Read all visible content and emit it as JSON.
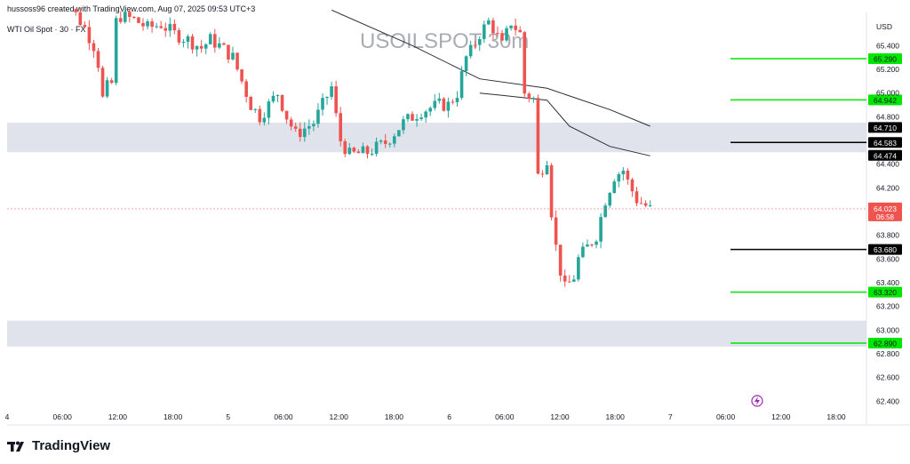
{
  "header": {
    "credit": "hussoss96 created with TradingView.com, Aug 07, 2025 09:53 UTC+3"
  },
  "symbol": "WTI Oil Spot · 30 · FX",
  "watermark": "USOILSPOT 30m",
  "footer": {
    "brand": "TradingView",
    "logo_icon": "tradingview-logo-icon"
  },
  "colors": {
    "up": "#26a69a",
    "down": "#ef5350",
    "green_level": "#00e600",
    "black_level": "#000000",
    "zone": "#e0e3eb"
  },
  "chart_data": {
    "type": "candlestick",
    "currency": "USD",
    "ylim": [
      62.35,
      65.65
    ],
    "y_ticks": [
      65.4,
      65.2,
      65.0,
      64.8,
      64.4,
      64.2,
      63.8,
      63.6,
      63.4,
      63.2,
      63.0,
      62.8,
      62.6,
      62.4
    ],
    "x_ticks": [
      "4",
      "06:00",
      "12:00",
      "18:00",
      "5",
      "06:00",
      "12:00",
      "18:00",
      "6",
      "06:00",
      "12:00",
      "18:00",
      "7",
      "06:00",
      "12:00",
      "18:00"
    ],
    "last_price": {
      "value": "64.023",
      "countdown": "06:58"
    },
    "zones": [
      {
        "from": 64.5,
        "to": 64.75
      },
      {
        "from": 62.86,
        "to": 63.08
      }
    ],
    "levels": [
      {
        "value": 65.29,
        "label": "65.290",
        "color": "green",
        "ray": true
      },
      {
        "value": 64.942,
        "label": "64.942",
        "color": "green",
        "ray": true
      },
      {
        "value": 64.71,
        "label": "64.710",
        "color": "black",
        "ray": false
      },
      {
        "value": 64.583,
        "label": "64.583",
        "color": "black",
        "ray": true
      },
      {
        "value": 64.474,
        "label": "64.474",
        "color": "black",
        "ray": false
      },
      {
        "value": 63.68,
        "label": "63.680",
        "color": "black",
        "ray": true
      },
      {
        "value": 63.32,
        "label": "63.320",
        "color": "green",
        "ray": true
      },
      {
        "value": 62.89,
        "label": "62.890",
        "color": "green",
        "ray": true
      }
    ],
    "close_path": [
      [
        0,
        65.7
      ],
      [
        4,
        65.72
      ],
      [
        7,
        65.55
      ],
      [
        9,
        65.4
      ],
      [
        10,
        65.25
      ],
      [
        11,
        64.95
      ],
      [
        12,
        65.05
      ],
      [
        13,
        65.08
      ],
      [
        14,
        65.6
      ],
      [
        15,
        65.65
      ],
      [
        18,
        65.62
      ],
      [
        21,
        65.55
      ],
      [
        24,
        65.58
      ],
      [
        27,
        65.5
      ],
      [
        30,
        65.45
      ],
      [
        33,
        65.38
      ],
      [
        35,
        65.45
      ],
      [
        37,
        65.4
      ],
      [
        40,
        65.3
      ],
      [
        42,
        65.1
      ],
      [
        44,
        64.9
      ],
      [
        46,
        64.8
      ],
      [
        48,
        64.9
      ],
      [
        50,
        65.0
      ],
      [
        52,
        64.8
      ],
      [
        54,
        64.65
      ],
      [
        56,
        64.7
      ],
      [
        58,
        64.75
      ],
      [
        60,
        64.9
      ],
      [
        62,
        65.05
      ],
      [
        63,
        64.8
      ],
      [
        64,
        64.6
      ],
      [
        66,
        64.48
      ],
      [
        70,
        64.5
      ],
      [
        74,
        64.58
      ],
      [
        78,
        64.75
      ],
      [
        82,
        64.85
      ],
      [
        86,
        64.9
      ],
      [
        88,
        64.9
      ],
      [
        90,
        65.0
      ],
      [
        92,
        65.3
      ],
      [
        93,
        65.35
      ],
      [
        95,
        65.5
      ],
      [
        97,
        65.6
      ],
      [
        98,
        65.55
      ],
      [
        100,
        65.4
      ],
      [
        102,
        65.6
      ],
      [
        103,
        65.55
      ],
      [
        104,
        65.5
      ],
      [
        105,
        65.0
      ],
      [
        107,
        64.95
      ],
      [
        108,
        64.3
      ],
      [
        110,
        64.45
      ],
      [
        111,
        64.0
      ],
      [
        112,
        63.7
      ],
      [
        113,
        63.5
      ],
      [
        114,
        63.35
      ],
      [
        115,
        63.4
      ],
      [
        116,
        63.45
      ],
      [
        117,
        63.6
      ],
      [
        119,
        63.7
      ],
      [
        121,
        63.8
      ],
      [
        123,
        64.1
      ],
      [
        125,
        64.3
      ],
      [
        127,
        64.35
      ],
      [
        128,
        64.25
      ],
      [
        130,
        64.1
      ],
      [
        132,
        64.05
      ],
      [
        133,
        64.02
      ]
    ],
    "moving_averages": [
      {
        "points": [
          [
            62,
            65.7
          ],
          [
            80,
            65.4
          ],
          [
            95,
            65.12
          ],
          [
            110,
            65.04
          ],
          [
            124,
            64.86
          ],
          [
            133,
            64.72
          ]
        ]
      },
      {
        "points": [
          [
            95,
            65.0
          ],
          [
            100,
            64.98
          ],
          [
            110,
            64.94
          ],
          [
            115,
            64.72
          ],
          [
            124,
            64.55
          ],
          [
            133,
            64.47
          ]
        ]
      }
    ]
  }
}
